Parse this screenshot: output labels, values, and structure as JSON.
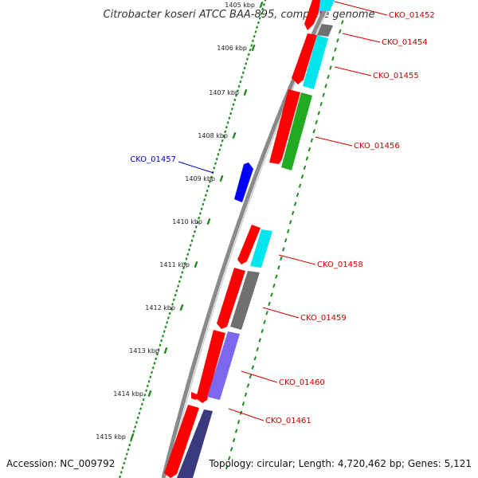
{
  "title": "Citrobacter koseri ATCC BAA-895, complete genome",
  "footer": {
    "accession": "Accession: NC_009792",
    "summary": "Topology: circular; Length: 4,720,462 bp; Genes: 5,121"
  },
  "ticks": [
    {
      "label": "1405 kbp"
    },
    {
      "label": "1406 kbp"
    },
    {
      "label": "1407 kbp"
    },
    {
      "label": "1408 kbp"
    },
    {
      "label": "1409 kbp"
    },
    {
      "label": "1410 kbp"
    },
    {
      "label": "1411 kbp"
    },
    {
      "label": "1412 kbp"
    },
    {
      "label": "1413 kbp"
    },
    {
      "label": "1414 kbp"
    },
    {
      "label": "1415 kbp"
    }
  ],
  "genes": [
    {
      "name": "CKO_01452",
      "color": "#cc0000"
    },
    {
      "name": "CKO_01454",
      "color": "#cc0000"
    },
    {
      "name": "CKO_01455",
      "color": "#cc0000"
    },
    {
      "name": "CKO_01456",
      "color": "#cc0000"
    },
    {
      "name": "CKO_01457",
      "color": "#0000cc"
    },
    {
      "name": "CKO_01458",
      "color": "#cc0000"
    },
    {
      "name": "CKO_01459",
      "color": "#cc0000"
    },
    {
      "name": "CKO_01460",
      "color": "#cc0000"
    },
    {
      "name": "CKO_01461",
      "color": "#cc0000"
    }
  ],
  "colors": {
    "cds_forward": "#ff0000",
    "cds_reverse": "#0000ff",
    "cog_cyan": "#00e5ee",
    "cog_gray": "#707070",
    "cog_green": "#22aa22",
    "cog_purple": "#7b68ee",
    "cog_navy": "#3a3a80",
    "backbone": "#8a8a8a",
    "tick": "#228b22"
  }
}
